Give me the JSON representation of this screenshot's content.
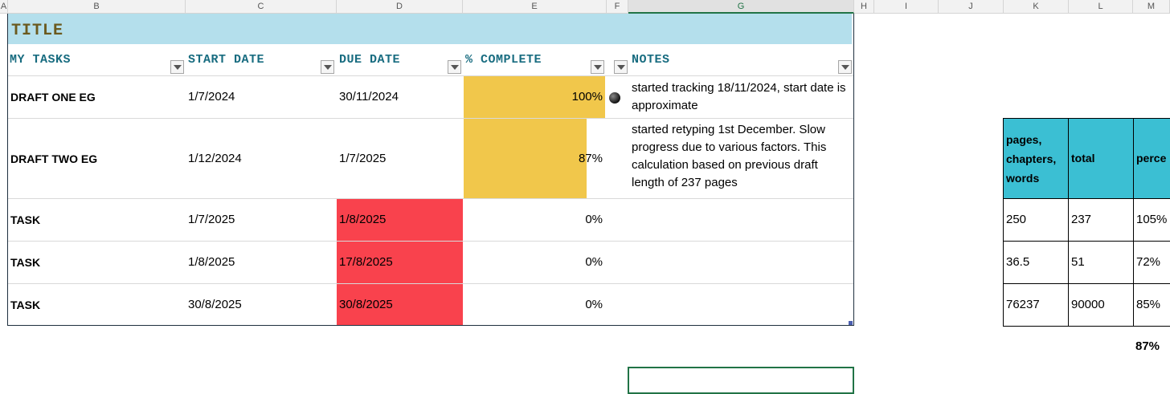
{
  "columns": [
    "A",
    "B",
    "C",
    "D",
    "E",
    "F",
    "G",
    "H",
    "I",
    "J",
    "K",
    "L",
    "M"
  ],
  "table": {
    "title": "TITLE",
    "headers": [
      "MY TASKS",
      "START DATE",
      "DUE DATE",
      "% COMPLETE",
      "NOTES"
    ],
    "rows": [
      {
        "task": "DRAFT ONE EG",
        "start": "1/7/2024",
        "due": "30/11/2024",
        "pct_text": "100%",
        "pct": 1.0,
        "notes": "started tracking 18/11/2024, start date is approximate",
        "due_overdue": false
      },
      {
        "task": "DRAFT TWO EG",
        "start": "1/12/2024",
        "due": "1/7/2025",
        "pct_text": "87%",
        "pct": 0.87,
        "notes": "started retyping 1st December. Slow progress due to various factors. This calculation based on previous draft length of 237 pages",
        "due_overdue": false
      },
      {
        "task": "TASK",
        "start": "1/7/2025",
        "due": "1/8/2025",
        "pct_text": "0%",
        "pct": 0,
        "notes": "",
        "due_overdue": true
      },
      {
        "task": "TASK",
        "start": "1/8/2025",
        "due": "17/8/2025",
        "pct_text": "0%",
        "pct": 0,
        "notes": "",
        "due_overdue": true
      },
      {
        "task": "TASK",
        "start": "30/8/2025",
        "due": "30/8/2025",
        "pct_text": "0%",
        "pct": 0,
        "notes": "",
        "due_overdue": true
      }
    ]
  },
  "side_table": {
    "headers": [
      "pages, chapters, words",
      "total",
      "perce"
    ],
    "rows": [
      [
        "250",
        "237",
        "105%"
      ],
      [
        "36.5",
        "51",
        "72%"
      ],
      [
        "76237",
        "90000",
        "85%"
      ]
    ],
    "average": "87%"
  },
  "colors": {
    "title_band": "#b4dfec",
    "header_text": "#186c80",
    "progress_fill": "#f1c74b",
    "overdue_fill": "#f9424d",
    "side_header_fill": "#3bbfd3",
    "active_column": "#217346"
  }
}
